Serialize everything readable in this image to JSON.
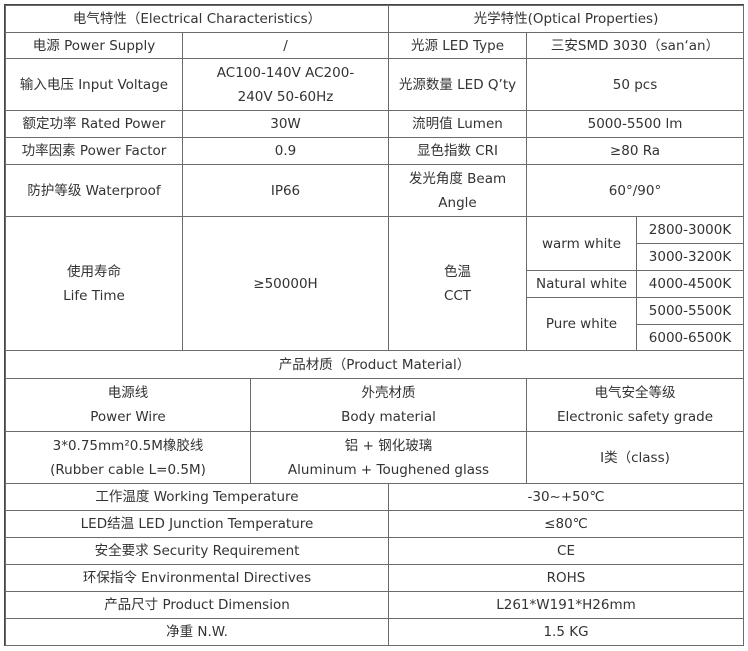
{
  "electrical": {
    "title": "电气特性（Electrical Characteristics）",
    "rows": [
      {
        "label": "电源 Power Supply",
        "value": "/"
      },
      {
        "label": "输入电压 Input Voltage",
        "value": "AC100-140V AC200-\n240V        50-60Hz"
      },
      {
        "label": "额定功率 Rated Power",
        "value": "30W"
      },
      {
        "label": "功率因素 Power Factor",
        "value": "0.9"
      },
      {
        "label": "防护等级 Waterproof",
        "value": "IP66"
      },
      {
        "label": "使用寿命\nLife Time",
        "value": "≥50000H"
      }
    ]
  },
  "optical": {
    "title": "光学特性(Optical Properties)",
    "rows": [
      {
        "label": "光源 LED Type",
        "value": "三安SMD 3030（san‘an）"
      },
      {
        "label": "光源数量 LED Q’ty",
        "value": "50 pcs"
      },
      {
        "label": "流明值 Lumen",
        "value": "5000-5500 lm"
      },
      {
        "label": "显色指数 CRI",
        "value": "≥80 Ra"
      },
      {
        "label": "发光角度 Beam\nAngle",
        "value": "60°/90°"
      }
    ],
    "cct": {
      "label": "色温\nCCT",
      "groups": [
        {
          "name": "warm white",
          "values": [
            "2800-3000K",
            "3000-3200K"
          ]
        },
        {
          "name": "Natural white",
          "values": [
            "4000-4500K"
          ]
        },
        {
          "name": "Pure white",
          "values": [
            "5000-5500K",
            "6000-6500K"
          ]
        }
      ]
    }
  },
  "material": {
    "title": "产品材质（Product Material）",
    "headers": [
      "电源线\nPower Wire",
      "外壳材质\nBody material",
      "电气安全等级\nElectronic safety grade"
    ],
    "values": [
      "3*0.75mm²0.5M橡胶线\n(Rubber cable L=0.5M)",
      "铝 + 钢化玻璃\nAluminum + Toughened glass",
      "I类（class)"
    ]
  },
  "other": [
    {
      "label": "工作温度  Working Temperature",
      "value": "-30~+50℃"
    },
    {
      "label": "LED结温 LED Junction Temperature",
      "value": "≤80℃"
    },
    {
      "label": "安全要求     Security Requirement",
      "value": "CE"
    },
    {
      "label": "环保指令  Environmental Directives",
      "value": "ROHS"
    },
    {
      "label": "产品尺寸 Product Dimension",
      "value": "L261*W191*H26mm"
    },
    {
      "label": "净重  N.W.",
      "value": "1.5 KG"
    }
  ]
}
